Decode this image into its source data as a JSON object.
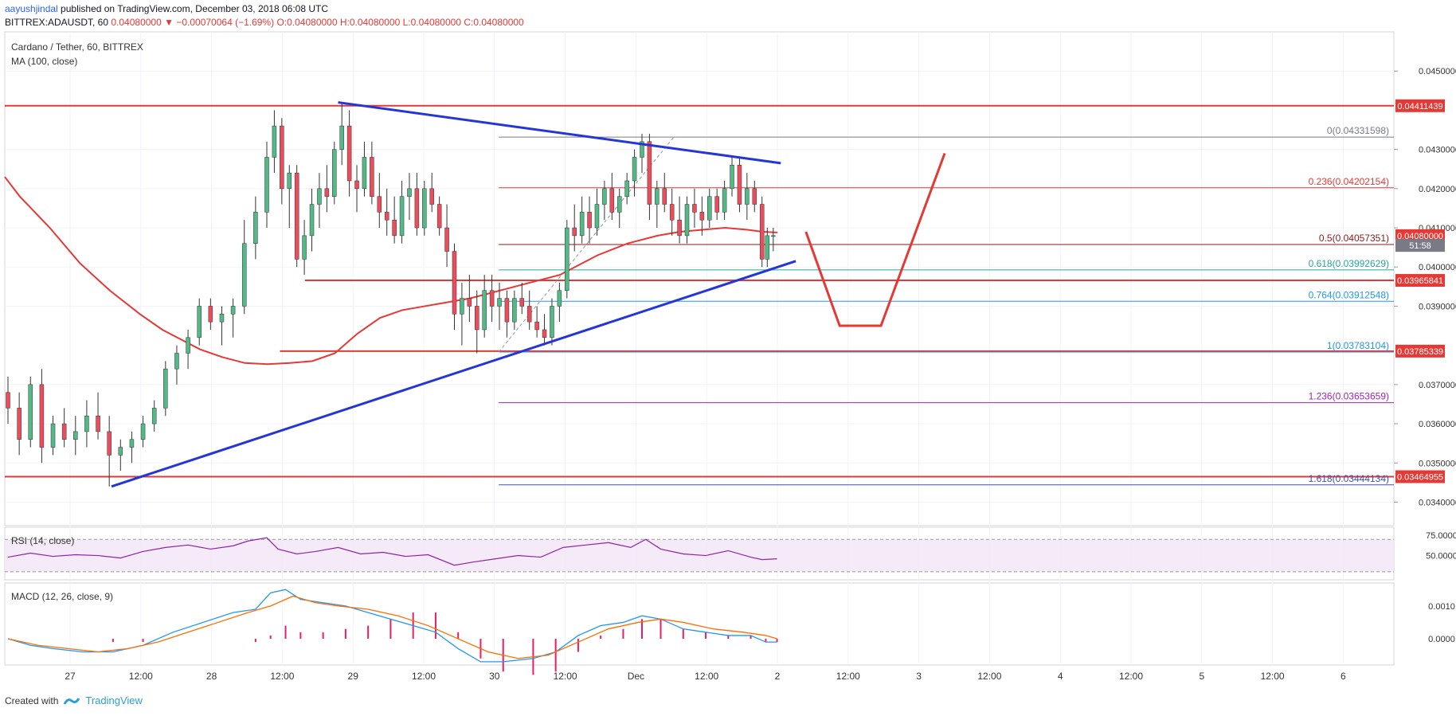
{
  "header": {
    "user": "aayushjindal",
    "published": " published on TradingView.com, December 03, 2018 06:08 UTC",
    "symbol": "BITTREX:ADAUSDT, 60",
    "last": "0.04080000",
    "change": "▼ −0.00070064 (−1.69%)",
    "ohlc": "O:0.04080000 H:0.04080000 L:0.04080000 C:0.04080000"
  },
  "main_pane": {
    "title": "Cardano / Tether, 60, BITTREX",
    "indicator": "MA (100, close)"
  },
  "rsi_pane": {
    "title": "RSI (14, close)"
  },
  "macd_pane": {
    "title": "MACD (12, 26, close, 9)"
  },
  "footer": {
    "created_with": "Created with",
    "brand": "TradingView"
  },
  "colors": {
    "up": "#53b987",
    "down": "#eb4d5c",
    "ma": "#e53935",
    "trend": "#2536d6",
    "sr": "#e53935",
    "rsi": "#8e24aa",
    "macd": "#2196f3",
    "signal": "#ff6d00"
  },
  "chart_data": {
    "type": "candlestick",
    "price_axis": {
      "min": 0.0334,
      "max": 0.046,
      "ticks": [
        "0.04500000",
        "0.04300000",
        "0.04200000",
        "0.04100000",
        "0.04000000",
        "0.03900000",
        "0.03700000",
        "0.03600000",
        "0.03500000",
        "0.03400000"
      ]
    },
    "time_axis": {
      "labels": [
        "27",
        "12:00",
        "28",
        "12:00",
        "29",
        "12:00",
        "30",
        "12:00",
        "Dec",
        "12:00",
        "2",
        "12:00",
        "3",
        "12:00",
        "4",
        "12:00",
        "5",
        "12:00",
        "6"
      ]
    },
    "price_labels": [
      {
        "text": "0.04411439",
        "value": 0.04411439,
        "color": "#e53935"
      },
      {
        "text": "0.04080000",
        "value": 0.0408,
        "color": "#e53935"
      },
      {
        "text": "51:58",
        "value": 0.04055,
        "color": "#787b86"
      },
      {
        "text": "0.03965841",
        "value": 0.03965841,
        "color": "#e53935"
      },
      {
        "text": "0.03785339",
        "value": 0.03785339,
        "color": "#e53935"
      },
      {
        "text": "0.03464955",
        "value": 0.03464955,
        "color": "#e53935"
      }
    ],
    "fib_levels": [
      {
        "label": "0(0.04331598)",
        "value": 0.04331598,
        "color": "#787b86"
      },
      {
        "label": "0.236(0.04202154)",
        "value": 0.04202154,
        "color": "#e53935"
      },
      {
        "label": "0.5(0.04057351)",
        "value": 0.04057351,
        "color": "#8b1a1a"
      },
      {
        "label": "0.618(0.03992629)",
        "value": 0.03992629,
        "color": "#26a69a"
      },
      {
        "label": "0.764(0.03912548)",
        "value": 0.03912548,
        "color": "#2196f3"
      },
      {
        "label": "1(0.03783104)",
        "value": 0.03783104,
        "color": "#2196f3"
      },
      {
        "label": "1.236(0.03653659)",
        "value": 0.03653659,
        "color": "#9c27b0"
      },
      {
        "label": "1.618(0.03444134)",
        "value": 0.03444134,
        "color": "#3f51b5"
      }
    ],
    "horizontal_lines": [
      0.04411439,
      0.03965841,
      0.03785339,
      0.03464955
    ],
    "ma_100": [
      [
        0,
        0.0423
      ],
      [
        20,
        0.0418
      ],
      [
        60,
        0.041
      ],
      [
        100,
        0.0401
      ],
      [
        140,
        0.0394
      ],
      [
        180,
        0.0388
      ],
      [
        210,
        0.0384
      ],
      [
        240,
        0.0381
      ],
      [
        260,
        0.0379
      ],
      [
        290,
        0.0377
      ],
      [
        320,
        0.03755
      ],
      [
        350,
        0.03752
      ],
      [
        380,
        0.03755
      ],
      [
        410,
        0.0376
      ],
      [
        440,
        0.0378
      ],
      [
        470,
        0.0383
      ],
      [
        500,
        0.0387
      ],
      [
        530,
        0.0389
      ],
      [
        560,
        0.039
      ],
      [
        590,
        0.0391
      ],
      [
        620,
        0.0392
      ],
      [
        650,
        0.03935
      ],
      [
        680,
        0.0395
      ],
      [
        710,
        0.03965
      ],
      [
        740,
        0.0398
      ],
      [
        760,
        0.04
      ],
      [
        790,
        0.0403
      ],
      [
        830,
        0.0406
      ],
      [
        870,
        0.0408
      ],
      [
        900,
        0.0409
      ],
      [
        930,
        0.04095
      ],
      [
        960,
        0.041
      ],
      [
        990,
        0.04095
      ],
      [
        1010,
        0.0409
      ],
      [
        1030,
        0.04088
      ]
    ],
    "candles": [
      [
        0,
        0.0368,
        0.0372,
        0.036,
        0.0364
      ],
      [
        15,
        0.0364,
        0.0368,
        0.0352,
        0.0356
      ],
      [
        30,
        0.0356,
        0.0372,
        0.0354,
        0.037
      ],
      [
        45,
        0.037,
        0.0374,
        0.035,
        0.0354
      ],
      [
        60,
        0.0354,
        0.0362,
        0.0352,
        0.036
      ],
      [
        75,
        0.036,
        0.0364,
        0.0354,
        0.0356
      ],
      [
        90,
        0.0356,
        0.0362,
        0.0352,
        0.0358
      ],
      [
        105,
        0.0358,
        0.0366,
        0.0354,
        0.0362
      ],
      [
        120,
        0.0362,
        0.0368,
        0.0356,
        0.0358
      ],
      [
        135,
        0.0358,
        0.0362,
        0.0344,
        0.0352
      ],
      [
        150,
        0.0352,
        0.0356,
        0.0348,
        0.0354
      ],
      [
        165,
        0.0354,
        0.0358,
        0.035,
        0.0356
      ],
      [
        180,
        0.0356,
        0.0362,
        0.0354,
        0.036
      ],
      [
        195,
        0.036,
        0.0366,
        0.0358,
        0.0364
      ],
      [
        210,
        0.0364,
        0.0376,
        0.0362,
        0.0374
      ],
      [
        225,
        0.0374,
        0.038,
        0.037,
        0.0378
      ],
      [
        240,
        0.0378,
        0.0384,
        0.0374,
        0.0382
      ],
      [
        255,
        0.0382,
        0.0392,
        0.038,
        0.039
      ],
      [
        270,
        0.039,
        0.0392,
        0.0384,
        0.0386
      ],
      [
        285,
        0.0386,
        0.039,
        0.038,
        0.0388
      ],
      [
        300,
        0.0388,
        0.0392,
        0.0382,
        0.039
      ],
      [
        315,
        0.039,
        0.0412,
        0.0388,
        0.0406
      ],
      [
        330,
        0.0406,
        0.0418,
        0.0402,
        0.0414
      ],
      [
        345,
        0.0414,
        0.0432,
        0.041,
        0.0428
      ],
      [
        355,
        0.0428,
        0.044,
        0.0424,
        0.0436
      ],
      [
        365,
        0.0436,
        0.0438,
        0.0416,
        0.042
      ],
      [
        375,
        0.042,
        0.0426,
        0.041,
        0.0424
      ],
      [
        385,
        0.0424,
        0.0426,
        0.04,
        0.0402
      ],
      [
        395,
        0.0402,
        0.0412,
        0.0398,
        0.0408
      ],
      [
        405,
        0.0408,
        0.042,
        0.0404,
        0.0416
      ],
      [
        415,
        0.0416,
        0.0424,
        0.041,
        0.042
      ],
      [
        425,
        0.042,
        0.0426,
        0.0414,
        0.0418
      ],
      [
        435,
        0.0418,
        0.0432,
        0.0416,
        0.043
      ],
      [
        445,
        0.043,
        0.0442,
        0.0426,
        0.0436
      ],
      [
        455,
        0.0436,
        0.044,
        0.0418,
        0.0422
      ],
      [
        465,
        0.0422,
        0.0426,
        0.0414,
        0.042
      ],
      [
        475,
        0.042,
        0.0432,
        0.0418,
        0.0428
      ],
      [
        485,
        0.0428,
        0.0432,
        0.0416,
        0.0418
      ],
      [
        495,
        0.0418,
        0.0424,
        0.041,
        0.0414
      ],
      [
        505,
        0.0414,
        0.042,
        0.0408,
        0.0412
      ],
      [
        515,
        0.0412,
        0.0418,
        0.0406,
        0.0408
      ],
      [
        525,
        0.0408,
        0.0422,
        0.0406,
        0.0418
      ],
      [
        535,
        0.0418,
        0.0424,
        0.0412,
        0.042
      ],
      [
        545,
        0.042,
        0.0424,
        0.0408,
        0.041
      ],
      [
        555,
        0.041,
        0.0422,
        0.0408,
        0.042
      ],
      [
        565,
        0.042,
        0.0424,
        0.0414,
        0.0416
      ],
      [
        575,
        0.0416,
        0.0418,
        0.0408,
        0.041
      ],
      [
        585,
        0.041,
        0.0416,
        0.04,
        0.0404
      ],
      [
        595,
        0.0404,
        0.0406,
        0.0384,
        0.0388
      ],
      [
        605,
        0.0388,
        0.0396,
        0.038,
        0.0392
      ],
      [
        615,
        0.0392,
        0.0398,
        0.0386,
        0.039
      ],
      [
        625,
        0.039,
        0.0394,
        0.0378,
        0.0384
      ],
      [
        635,
        0.0384,
        0.0398,
        0.0382,
        0.0394
      ],
      [
        645,
        0.0394,
        0.0398,
        0.0386,
        0.039
      ],
      [
        655,
        0.039,
        0.0396,
        0.0384,
        0.0392
      ],
      [
        665,
        0.0392,
        0.0394,
        0.0382,
        0.0386
      ],
      [
        675,
        0.0386,
        0.0394,
        0.0384,
        0.0392
      ],
      [
        685,
        0.0392,
        0.0396,
        0.0388,
        0.039
      ],
      [
        695,
        0.039,
        0.0394,
        0.0384,
        0.0386
      ],
      [
        705,
        0.0386,
        0.039,
        0.0382,
        0.0384
      ],
      [
        715,
        0.0384,
        0.0388,
        0.038,
        0.0382
      ],
      [
        725,
        0.0382,
        0.0392,
        0.038,
        0.039
      ],
      [
        735,
        0.039,
        0.0396,
        0.0386,
        0.0394
      ],
      [
        745,
        0.0394,
        0.0412,
        0.0392,
        0.041
      ],
      [
        755,
        0.041,
        0.0416,
        0.0404,
        0.0408
      ],
      [
        765,
        0.0408,
        0.0418,
        0.0406,
        0.0414
      ],
      [
        775,
        0.0414,
        0.0418,
        0.0406,
        0.041
      ],
      [
        785,
        0.041,
        0.042,
        0.0408,
        0.0416
      ],
      [
        795,
        0.0416,
        0.0422,
        0.0412,
        0.042
      ],
      [
        805,
        0.042,
        0.0424,
        0.0412,
        0.0414
      ],
      [
        815,
        0.0414,
        0.042,
        0.041,
        0.0418
      ],
      [
        825,
        0.0418,
        0.0424,
        0.0416,
        0.0422
      ],
      [
        835,
        0.0422,
        0.043,
        0.0418,
        0.0428
      ],
      [
        845,
        0.0428,
        0.0434,
        0.0424,
        0.0432
      ],
      [
        855,
        0.0432,
        0.0434,
        0.0412,
        0.0416
      ],
      [
        865,
        0.0416,
        0.0422,
        0.041,
        0.042
      ],
      [
        875,
        0.042,
        0.0424,
        0.0414,
        0.0416
      ],
      [
        885,
        0.0416,
        0.042,
        0.0408,
        0.0412
      ],
      [
        895,
        0.0412,
        0.0418,
        0.0406,
        0.0408
      ],
      [
        905,
        0.0408,
        0.0418,
        0.0406,
        0.0416
      ],
      [
        915,
        0.0416,
        0.042,
        0.041,
        0.0414
      ],
      [
        925,
        0.0414,
        0.0418,
        0.0408,
        0.0412
      ],
      [
        935,
        0.0412,
        0.042,
        0.041,
        0.0418
      ],
      [
        945,
        0.0418,
        0.042,
        0.0412,
        0.0414
      ],
      [
        955,
        0.0414,
        0.0422,
        0.0412,
        0.042
      ],
      [
        965,
        0.042,
        0.0428,
        0.0418,
        0.0426
      ],
      [
        975,
        0.0426,
        0.0428,
        0.0414,
        0.0416
      ],
      [
        985,
        0.0416,
        0.0424,
        0.0412,
        0.042
      ],
      [
        995,
        0.042,
        0.0422,
        0.0414,
        0.0416
      ],
      [
        1005,
        0.0416,
        0.0418,
        0.04,
        0.0402
      ],
      [
        1012,
        0.0402,
        0.041,
        0.04,
        0.0408
      ],
      [
        1020,
        0.0408,
        0.041,
        0.0404,
        0.0408
      ]
    ],
    "trendlines": [
      {
        "name": "upper",
        "from": [
          440,
          0.0442
        ],
        "to": [
          1030,
          0.04265
        ]
      },
      {
        "name": "lower",
        "from": [
          138,
          0.0344
        ],
        "to": [
          1050,
          0.04015
        ]
      }
    ],
    "projection": [
      [
        1055,
        0.0409
      ],
      [
        1100,
        0.0385
      ],
      [
        1155,
        0.0385
      ],
      [
        1240,
        0.0429
      ]
    ],
    "rsi": {
      "levels": [
        "75.0000",
        "50.0000"
      ],
      "min": 20,
      "max": 85,
      "values": [
        [
          0,
          48
        ],
        [
          30,
          53
        ],
        [
          60,
          49
        ],
        [
          90,
          51
        ],
        [
          120,
          50
        ],
        [
          150,
          47
        ],
        [
          180,
          55
        ],
        [
          210,
          60
        ],
        [
          240,
          63
        ],
        [
          270,
          58
        ],
        [
          300,
          62
        ],
        [
          320,
          68
        ],
        [
          345,
          72
        ],
        [
          360,
          58
        ],
        [
          385,
          52
        ],
        [
          410,
          55
        ],
        [
          440,
          60
        ],
        [
          470,
          52
        ],
        [
          500,
          54
        ],
        [
          530,
          49
        ],
        [
          560,
          51
        ],
        [
          595,
          38
        ],
        [
          620,
          42
        ],
        [
          650,
          46
        ],
        [
          680,
          50
        ],
        [
          710,
          48
        ],
        [
          740,
          60
        ],
        [
          770,
          63
        ],
        [
          800,
          66
        ],
        [
          830,
          60
        ],
        [
          850,
          70
        ],
        [
          870,
          58
        ],
        [
          900,
          52
        ],
        [
          930,
          50
        ],
        [
          960,
          56
        ],
        [
          990,
          48
        ],
        [
          1005,
          45
        ],
        [
          1025,
          46
        ]
      ]
    },
    "macd": {
      "levels": [
        "0.0010",
        "0.0000"
      ],
      "min": -0.0008,
      "max": 0.0017,
      "macd": [
        [
          0,
          0.0
        ],
        [
          30,
          -0.0002
        ],
        [
          60,
          -0.0003
        ],
        [
          100,
          -0.0004
        ],
        [
          140,
          -0.0004
        ],
        [
          180,
          -0.0002
        ],
        [
          220,
          0.0002
        ],
        [
          260,
          0.0005
        ],
        [
          300,
          0.0008
        ],
        [
          330,
          0.0009
        ],
        [
          350,
          0.0014
        ],
        [
          370,
          0.0015
        ],
        [
          390,
          0.0012
        ],
        [
          420,
          0.0011
        ],
        [
          450,
          0.001
        ],
        [
          480,
          0.0008
        ],
        [
          510,
          0.0006
        ],
        [
          540,
          0.0004
        ],
        [
          570,
          0.0002
        ],
        [
          600,
          -0.0003
        ],
        [
          630,
          -0.0007
        ],
        [
          660,
          -0.0007
        ],
        [
          700,
          -0.0006
        ],
        [
          730,
          -0.0004
        ],
        [
          760,
          0.0001
        ],
        [
          790,
          0.0004
        ],
        [
          820,
          0.0005
        ],
        [
          845,
          0.0007
        ],
        [
          870,
          0.0006
        ],
        [
          900,
          0.0003
        ],
        [
          930,
          0.0002
        ],
        [
          960,
          0.0001
        ],
        [
          990,
          0.0001
        ],
        [
          1010,
          -0.0001
        ],
        [
          1025,
          -0.0001
        ]
      ],
      "signal": [
        [
          0,
          0.0
        ],
        [
          40,
          -0.0002
        ],
        [
          80,
          -0.0003
        ],
        [
          120,
          -0.0004
        ],
        [
          160,
          -0.0003
        ],
        [
          200,
          -0.0001
        ],
        [
          240,
          0.0002
        ],
        [
          280,
          0.0005
        ],
        [
          320,
          0.0008
        ],
        [
          350,
          0.001
        ],
        [
          380,
          0.0013
        ],
        [
          410,
          0.0011
        ],
        [
          440,
          0.001
        ],
        [
          480,
          0.0009
        ],
        [
          520,
          0.0007
        ],
        [
          560,
          0.0004
        ],
        [
          600,
          0.0
        ],
        [
          640,
          -0.0004
        ],
        [
          680,
          -0.0006
        ],
        [
          720,
          -0.0005
        ],
        [
          760,
          -0.0001
        ],
        [
          800,
          0.0003
        ],
        [
          840,
          0.0005
        ],
        [
          870,
          0.0006
        ],
        [
          900,
          0.0005
        ],
        [
          940,
          0.0003
        ],
        [
          980,
          0.0002
        ],
        [
          1010,
          0.0001
        ],
        [
          1025,
          0.0
        ]
      ]
    }
  }
}
